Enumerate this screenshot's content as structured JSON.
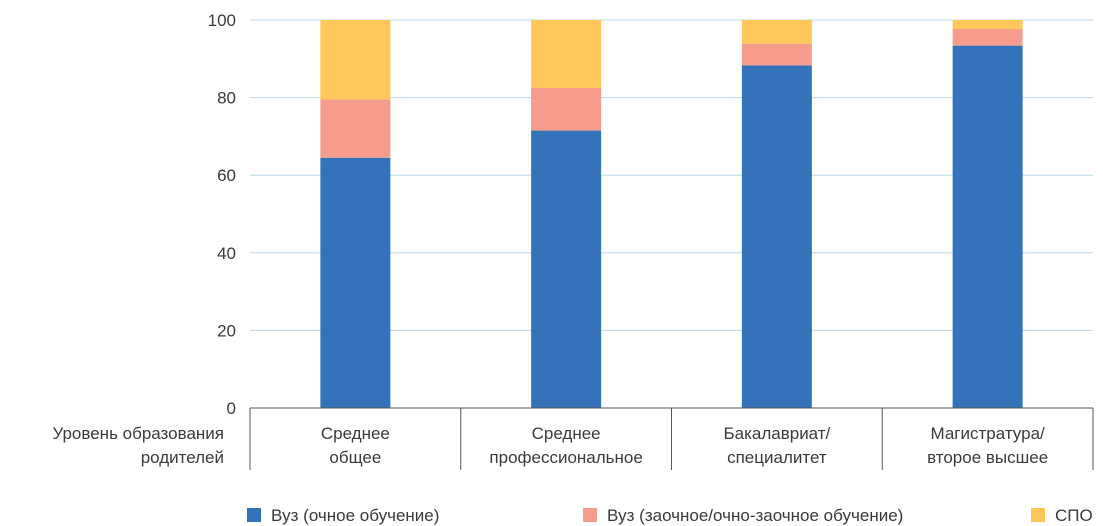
{
  "chart_data": {
    "type": "bar",
    "stacked": true,
    "categories": [
      [
        "Среднее",
        "общее"
      ],
      [
        "Среднее",
        "профессиональное"
      ],
      [
        "Бакалавриат/",
        "специалитет"
      ],
      [
        "Магистратура/",
        "второе высшее"
      ]
    ],
    "row_label": [
      "Уровень образования",
      "родителей"
    ],
    "series": [
      {
        "name": "Вуз (очное обучение)",
        "color": "#3473BA",
        "values": [
          64.5,
          71.5,
          88.3,
          93.4
        ]
      },
      {
        "name": "Вуз (заочное/очно-заочное обучение)",
        "color": "#F59C8C",
        "values": [
          15,
          11,
          5.6,
          4.3
        ]
      },
      {
        "name": "СПО",
        "color": "#FDC75A",
        "values": [
          20.5,
          17.5,
          6.1,
          2.3
        ]
      }
    ],
    "ylim": [
      0,
      100
    ],
    "yticks": [
      0,
      20,
      40,
      60,
      80,
      100
    ],
    "grid": true,
    "grid_color": "#B8DCEA",
    "legend_position": "bottom"
  }
}
